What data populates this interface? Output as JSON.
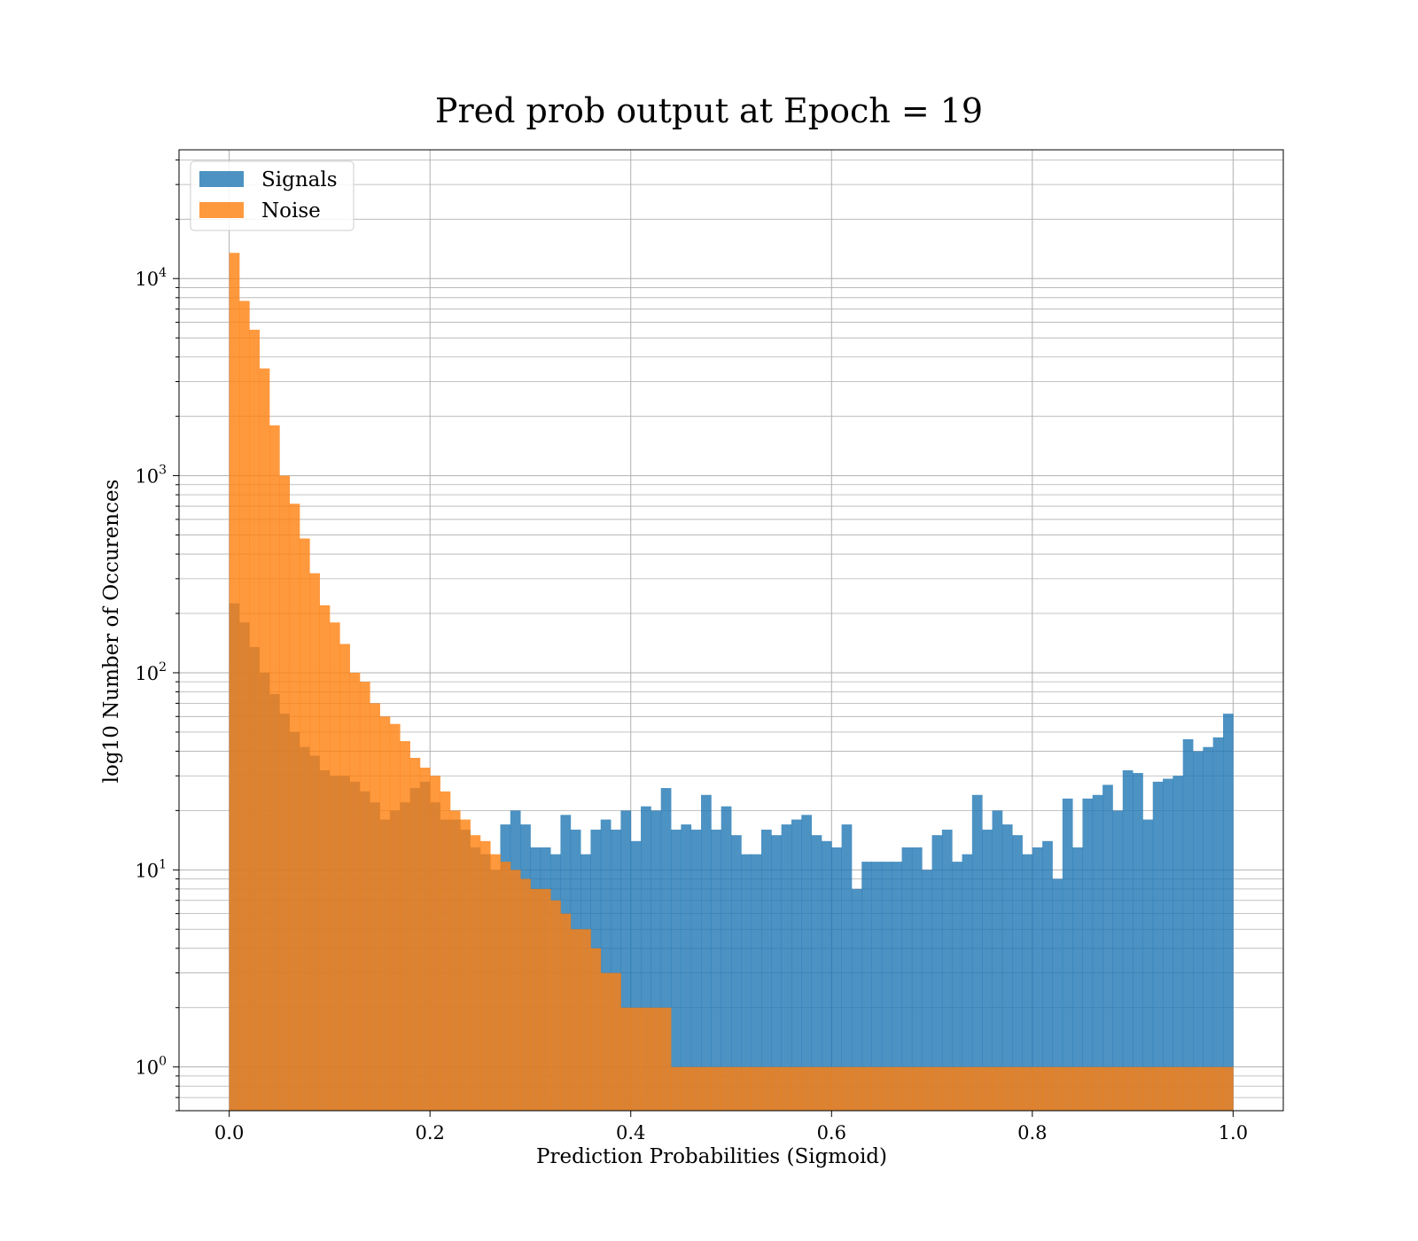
{
  "chart_data": {
    "type": "bar",
    "title": "Pred prob output at Epoch = 19",
    "xlabel": "Prediction Probabilities (Sigmoid)",
    "ylabel": "log10 Number of Occurences",
    "xlim": [
      -0.05,
      1.05
    ],
    "ylim": [
      0.6,
      45000
    ],
    "yscale": "log",
    "grid": true,
    "legend_position": "top-left",
    "bins": {
      "start": 0.0,
      "end": 1.0,
      "count": 100
    },
    "x_ticks": [
      "0.0",
      "0.2",
      "0.4",
      "0.6",
      "0.8",
      "1.0"
    ],
    "x_tick_values": [
      0.0,
      0.2,
      0.4,
      0.6,
      0.8,
      1.0
    ],
    "y_ticks": [
      {
        "base": "10",
        "exp": "0",
        "value": 1
      },
      {
        "base": "10",
        "exp": "1",
        "value": 10
      },
      {
        "base": "10",
        "exp": "2",
        "value": 100
      },
      {
        "base": "10",
        "exp": "3",
        "value": 1000
      },
      {
        "base": "10",
        "exp": "4",
        "value": 10000
      }
    ],
    "series": [
      {
        "name": "Signals",
        "color": "#1f77b4",
        "values": [
          225,
          180,
          135,
          100,
          78,
          62,
          50,
          42,
          38,
          32,
          30,
          30,
          28,
          25,
          22,
          18,
          20,
          22,
          26,
          28,
          22,
          18,
          18,
          16,
          13,
          12,
          10,
          17,
          20,
          17,
          13,
          13,
          12,
          19,
          16,
          12,
          16,
          18,
          16,
          20,
          14,
          21,
          20,
          26,
          16,
          17,
          16,
          24,
          16,
          21,
          15,
          12,
          12,
          16,
          15,
          17,
          18,
          19,
          15,
          14,
          13,
          17,
          8,
          11,
          11,
          11,
          11,
          13,
          13,
          10,
          15,
          16,
          11,
          12,
          24,
          16,
          20,
          17,
          15,
          12,
          13,
          14,
          9,
          23,
          13,
          23,
          24,
          27,
          20,
          32,
          31,
          18,
          28,
          29,
          30,
          46,
          40,
          42,
          47,
          62
        ]
      },
      {
        "name": "Noise",
        "color": "#ff7f0e",
        "values": [
          13500,
          7700,
          5500,
          3500,
          1800,
          1000,
          720,
          480,
          320,
          220,
          180,
          140,
          100,
          90,
          70,
          60,
          55,
          45,
          37,
          33,
          30,
          25,
          20,
          18,
          15,
          14,
          12,
          11,
          10,
          9,
          8,
          8,
          7,
          6,
          5,
          5,
          4,
          3,
          3,
          2,
          2,
          2,
          2,
          2,
          1,
          1,
          1,
          1,
          1,
          1,
          1,
          1,
          1,
          1,
          1,
          1,
          1,
          1,
          1,
          1,
          1,
          1,
          1,
          1,
          1,
          1,
          1,
          1,
          1,
          1,
          1,
          1,
          1,
          1,
          1,
          1,
          1,
          1,
          1,
          1,
          1,
          1,
          1,
          1,
          1,
          1,
          1,
          1,
          1,
          1,
          1,
          1,
          1,
          1,
          1,
          1,
          1,
          1,
          1,
          1
        ]
      }
    ]
  }
}
